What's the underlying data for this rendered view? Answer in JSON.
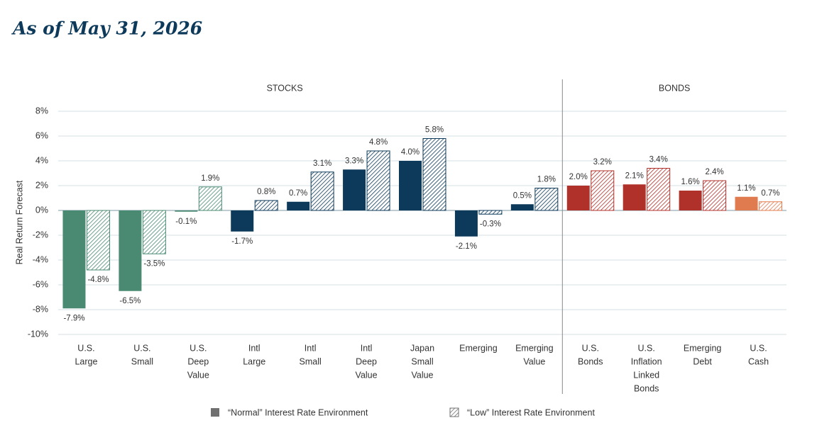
{
  "chart_data": {
    "type": "bar",
    "title": "As of May 31, 2026",
    "y_label": "Real Return Forecast",
    "group_labels": [
      "STOCKS",
      "BONDS"
    ],
    "categories": [
      [
        "U.S.",
        "Large"
      ],
      [
        "U.S.",
        "Small"
      ],
      [
        "U.S.",
        "Deep",
        "Value"
      ],
      [
        "Intl",
        "Large"
      ],
      [
        "Intl",
        "Small"
      ],
      [
        "Intl",
        "Deep",
        "Value"
      ],
      [
        "Japan",
        "Small",
        "Value"
      ],
      [
        "Emerging"
      ],
      [
        "Emerging",
        "Value"
      ],
      [
        "U.S.",
        "Bonds"
      ],
      [
        "U.S.",
        "Inflation",
        "Linked",
        "Bonds"
      ],
      [
        "Emerging",
        "Debt"
      ],
      [
        "U.S.",
        "Cash"
      ]
    ],
    "colors": [
      "#4a8a72",
      "#4a8a72",
      "#4a8a72",
      "#0d3a5a",
      "#0d3a5a",
      "#0d3a5a",
      "#0d3a5a",
      "#0d3a5a",
      "#0d3a5a",
      "#b0312a",
      "#b0312a",
      "#b0312a",
      "#e07b4f"
    ],
    "series": [
      {
        "name": "“Normal” Interest Rate Environment",
        "color": "#707070",
        "hatched": false,
        "values": [
          -7.9,
          -6.5,
          -0.1,
          -1.7,
          0.7,
          3.3,
          4.0,
          -2.1,
          0.5,
          2.0,
          2.1,
          1.6,
          1.1
        ],
        "value_labels": [
          "-7.9%",
          "-6.5%",
          "-0.1%",
          "-1.7%",
          "0.7%",
          "3.3%",
          "4.0%",
          "-2.1%",
          "0.5%",
          "2.0%",
          "2.1%",
          "1.6%",
          "1.1%"
        ]
      },
      {
        "name": "“Low” Interest Rate Environment",
        "color": "#707070",
        "hatched": true,
        "values": [
          -4.8,
          -3.5,
          1.9,
          0.8,
          3.1,
          4.8,
          5.8,
          -0.3,
          1.8,
          3.2,
          3.4,
          2.4,
          0.7
        ],
        "value_labels": [
          "-4.8%",
          "-3.5%",
          "1.9%",
          "0.8%",
          "3.1%",
          "4.8%",
          "5.8%",
          "-0.3%",
          "1.8%",
          "3.2%",
          "3.4%",
          "2.4%",
          "0.7%"
        ]
      }
    ],
    "ylim": [
      -10,
      8
    ],
    "yticks": [
      {
        "value": -10,
        "label": "-10%"
      },
      {
        "value": -8,
        "label": "-8%"
      },
      {
        "value": -6,
        "label": "-6%"
      },
      {
        "value": -4,
        "label": "-4%"
      },
      {
        "value": -2,
        "label": "-2%"
      },
      {
        "value": 0,
        "label": "0%"
      },
      {
        "value": 2,
        "label": "2%"
      },
      {
        "value": 4,
        "label": "4%"
      },
      {
        "value": 6,
        "label": "6%"
      },
      {
        "value": 8,
        "label": "8%"
      }
    ],
    "grid": true
  }
}
